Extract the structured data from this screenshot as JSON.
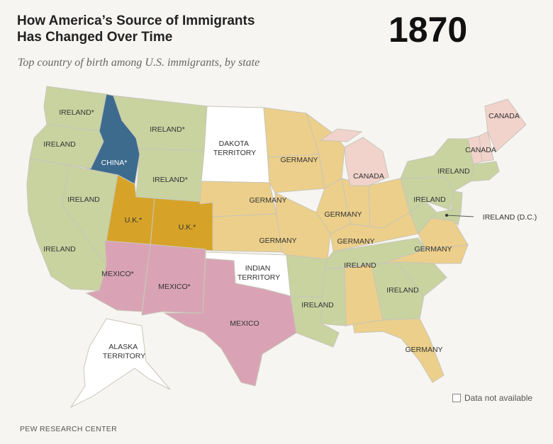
{
  "header": {
    "title_line1": "How America’s Source of Immigrants",
    "title_line2": "Has Changed Over Time",
    "year": "1870",
    "subtitle": "Top country of birth among U.S. immigrants, by state"
  },
  "legend": {
    "no_data": "Data not available"
  },
  "footer": {
    "source": "PEW RESEARCH CENTER"
  },
  "colors": {
    "ireland": "#c8d3a0",
    "germany": "#eccf8a",
    "mexico": "#d9a3b5",
    "uk": "#d6a328",
    "china": "#3d6b8e",
    "canada": "#f1d3cb",
    "no_data": "#ffffff"
  },
  "map_labels": {
    "wa": "IRELAND*",
    "or": "IRELAND",
    "id": "CHINA*",
    "mt": "IRELAND*",
    "wy": "IRELAND*",
    "dakota": "DAKOTA TERRITORY",
    "ca": "IRELAND",
    "nv": "IRELAND",
    "ut": "U.K.*",
    "co": "U.K.*",
    "az": "MEXICO*",
    "nm": "MEXICO*",
    "tx": "MEXICO",
    "indian": "INDIAN TERRITORY",
    "ne": "GERMANY",
    "ks": "GERMANY",
    "mn": "GERMANY",
    "wi": "GERMANY",
    "ia": "GERMANY",
    "il": "GERMANY",
    "mo": "GERMANY",
    "in": "GERMANY",
    "oh": "GERMANY",
    "ky": "GERMANY",
    "la": "GERMANY",
    "mi": "CANADA",
    "me": "CANADA",
    "vt": "CANADA",
    "ny": "IRELAND",
    "pa": "IRELAND",
    "dc": "IRELAND (D.C.)",
    "tn": "IRELAND",
    "ga": "IRELAND",
    "ms": "IRELAND",
    "alaska": "ALASKA TERRITORY"
  }
}
